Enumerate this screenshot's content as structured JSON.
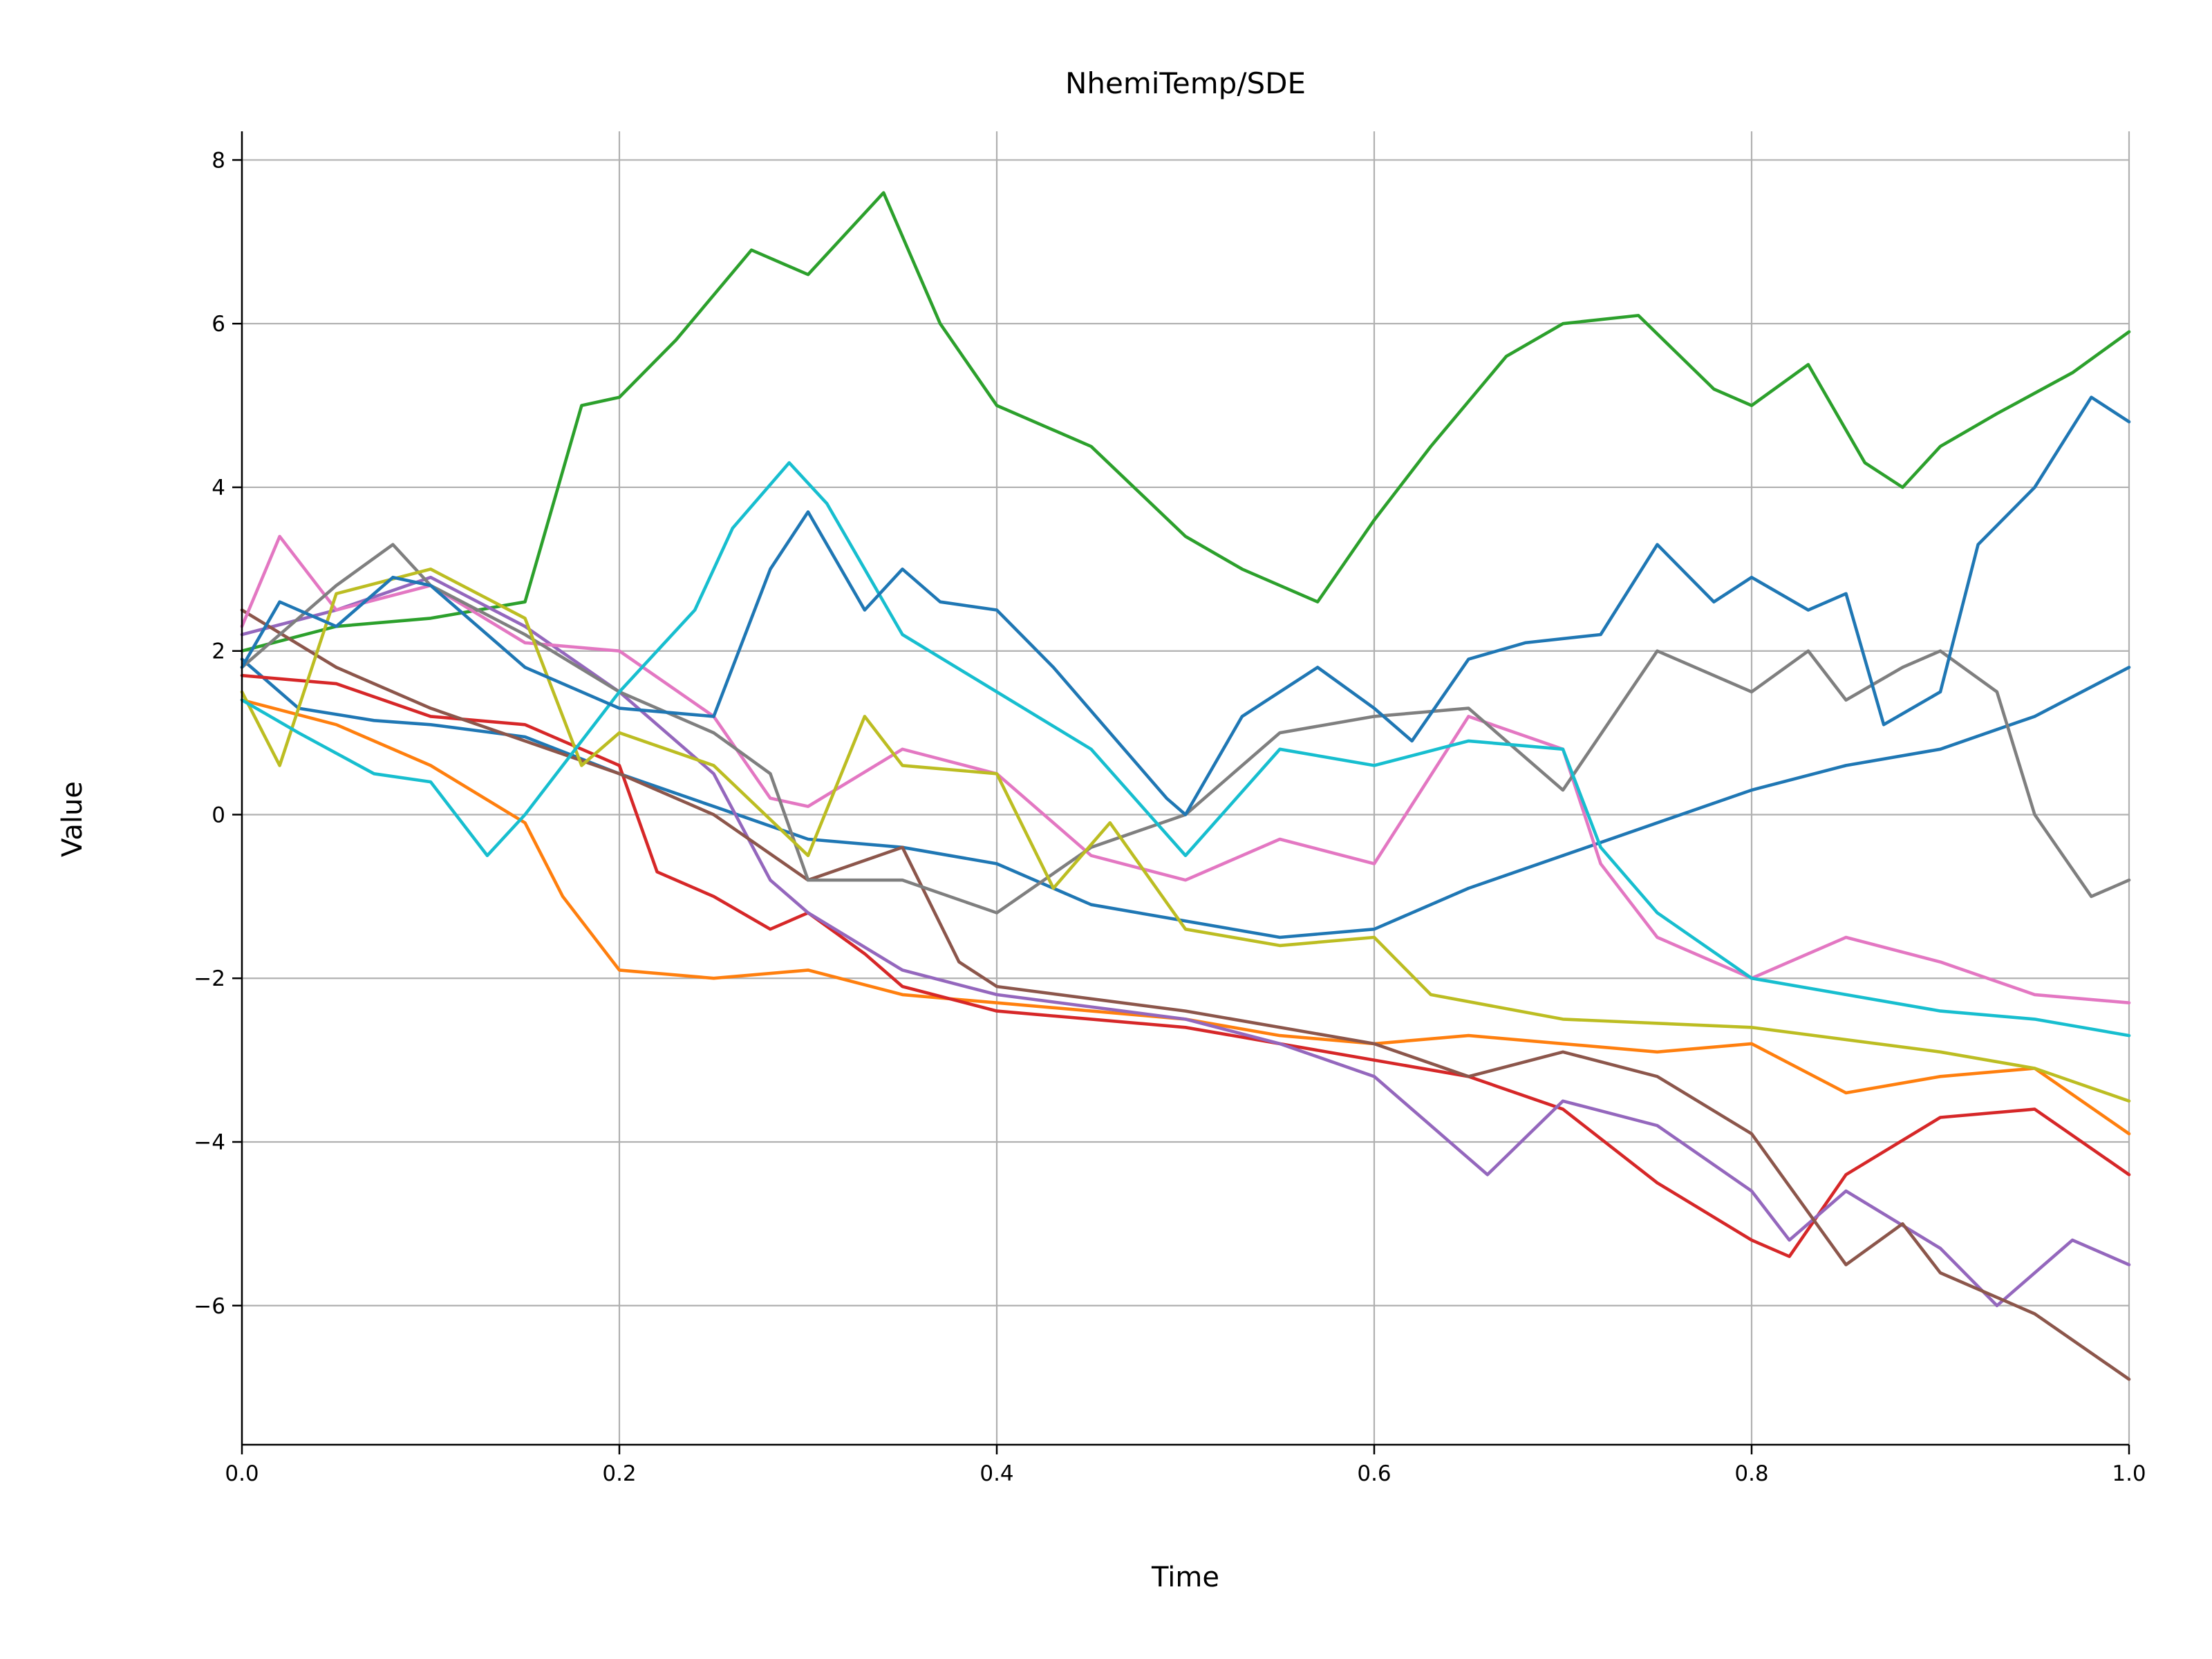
{
  "chart_data": {
    "type": "line",
    "title": "NhemiTemp/SDE",
    "xlabel": "Time",
    "ylabel": "Value",
    "xlim": [
      0.0,
      1.0
    ],
    "ylim": [
      -7.7,
      8.35
    ],
    "xticks": [
      0.0,
      0.2,
      0.4,
      0.6,
      0.8,
      1.0
    ],
    "xtick_labels": [
      "0.0",
      "0.2",
      "0.4",
      "0.6",
      "0.8",
      "1.0"
    ],
    "yticks": [
      -6,
      -4,
      -2,
      0,
      2,
      4,
      6,
      8
    ],
    "ytick_labels": [
      "−6",
      "−4",
      "−2",
      "0",
      "2",
      "4",
      "6",
      "8"
    ],
    "grid": true,
    "legend": "none",
    "series": [
      {
        "color": "#1f77b4",
        "x": [
          0.0,
          0.03,
          0.07,
          0.1,
          0.15,
          0.2,
          0.25,
          0.3,
          0.35,
          0.4,
          0.45,
          0.5,
          0.55,
          0.6,
          0.65,
          0.7,
          0.75,
          0.8,
          0.85,
          0.9,
          0.95,
          1.0
        ],
        "y": [
          1.9,
          1.3,
          1.15,
          1.1,
          0.95,
          0.5,
          0.1,
          -0.3,
          -0.4,
          -0.6,
          -1.1,
          -1.3,
          -1.5,
          -1.4,
          -0.9,
          -0.5,
          -0.1,
          0.3,
          0.6,
          0.8,
          1.2,
          1.8
        ]
      },
      {
        "color": "#ff7f0e",
        "x": [
          0.0,
          0.05,
          0.1,
          0.15,
          0.17,
          0.2,
          0.25,
          0.3,
          0.35,
          0.4,
          0.5,
          0.55,
          0.6,
          0.65,
          0.7,
          0.75,
          0.8,
          0.85,
          0.9,
          0.95,
          1.0
        ],
        "y": [
          1.4,
          1.1,
          0.6,
          -0.1,
          -1.0,
          -1.9,
          -2.0,
          -1.9,
          -2.2,
          -2.3,
          -2.5,
          -2.7,
          -2.8,
          -2.7,
          -2.8,
          -2.9,
          -2.8,
          -3.4,
          -3.2,
          -3.1,
          -3.9
        ]
      },
      {
        "color": "#2ca02c",
        "x": [
          0.0,
          0.05,
          0.1,
          0.15,
          0.18,
          0.2,
          0.23,
          0.27,
          0.3,
          0.34,
          0.37,
          0.4,
          0.45,
          0.5,
          0.53,
          0.57,
          0.6,
          0.63,
          0.67,
          0.7,
          0.74,
          0.78,
          0.8,
          0.83,
          0.86,
          0.88,
          0.9,
          0.93,
          0.97,
          1.0
        ],
        "y": [
          2.0,
          2.3,
          2.4,
          2.6,
          5.0,
          5.1,
          5.8,
          6.9,
          6.6,
          7.6,
          6.0,
          5.0,
          4.5,
          3.4,
          3.0,
          2.6,
          3.6,
          4.5,
          5.6,
          6.0,
          6.1,
          5.2,
          5.0,
          5.5,
          4.3,
          4.0,
          4.5,
          4.9,
          5.4,
          5.9
        ]
      },
      {
        "color": "#d62728",
        "x": [
          0.0,
          0.05,
          0.1,
          0.15,
          0.2,
          0.22,
          0.25,
          0.28,
          0.3,
          0.33,
          0.35,
          0.4,
          0.5,
          0.6,
          0.65,
          0.7,
          0.75,
          0.8,
          0.82,
          0.85,
          0.9,
          0.95,
          1.0
        ],
        "y": [
          1.7,
          1.6,
          1.2,
          1.1,
          0.6,
          -0.7,
          -1.0,
          -1.4,
          -1.2,
          -1.7,
          -2.1,
          -2.4,
          -2.6,
          -3.0,
          -3.2,
          -3.6,
          -4.5,
          -5.2,
          -5.4,
          -4.4,
          -3.7,
          -3.6,
          -4.4
        ]
      },
      {
        "color": "#9467bd",
        "x": [
          0.0,
          0.05,
          0.1,
          0.15,
          0.2,
          0.25,
          0.28,
          0.3,
          0.35,
          0.4,
          0.5,
          0.55,
          0.6,
          0.63,
          0.66,
          0.7,
          0.75,
          0.8,
          0.82,
          0.85,
          0.9,
          0.93,
          0.97,
          1.0
        ],
        "y": [
          2.2,
          2.5,
          2.9,
          2.3,
          1.5,
          0.5,
          -0.8,
          -1.2,
          -1.9,
          -2.2,
          -2.5,
          -2.8,
          -3.2,
          -3.8,
          -4.4,
          -3.5,
          -3.8,
          -4.6,
          -5.2,
          -4.6,
          -5.3,
          -6.0,
          -5.2,
          -5.5
        ]
      },
      {
        "color": "#8c564b",
        "x": [
          0.0,
          0.05,
          0.1,
          0.15,
          0.2,
          0.25,
          0.3,
          0.35,
          0.38,
          0.4,
          0.5,
          0.6,
          0.65,
          0.7,
          0.75,
          0.8,
          0.85,
          0.88,
          0.9,
          0.95,
          1.0
        ],
        "y": [
          2.5,
          1.8,
          1.3,
          0.9,
          0.5,
          0.0,
          -0.8,
          -0.4,
          -1.8,
          -2.1,
          -2.4,
          -2.8,
          -3.2,
          -2.9,
          -3.2,
          -3.9,
          -5.5,
          -5.0,
          -5.6,
          -6.1,
          -6.9
        ]
      },
      {
        "color": "#e377c2",
        "x": [
          0.0,
          0.02,
          0.05,
          0.1,
          0.15,
          0.2,
          0.25,
          0.28,
          0.3,
          0.35,
          0.4,
          0.45,
          0.5,
          0.55,
          0.6,
          0.65,
          0.7,
          0.72,
          0.75,
          0.8,
          0.85,
          0.9,
          0.95,
          1.0
        ],
        "y": [
          2.3,
          3.4,
          2.5,
          2.8,
          2.1,
          2.0,
          1.2,
          0.2,
          0.1,
          0.8,
          0.5,
          -0.5,
          -0.8,
          -0.3,
          -0.6,
          1.2,
          0.8,
          -0.6,
          -1.5,
          -2.0,
          -1.5,
          -1.8,
          -2.2,
          -2.3
        ]
      },
      {
        "color": "#7f7f7f",
        "x": [
          0.0,
          0.05,
          0.08,
          0.1,
          0.15,
          0.2,
          0.25,
          0.28,
          0.3,
          0.35,
          0.4,
          0.45,
          0.5,
          0.55,
          0.6,
          0.65,
          0.7,
          0.75,
          0.8,
          0.83,
          0.85,
          0.88,
          0.9,
          0.93,
          0.95,
          0.98,
          1.0
        ],
        "y": [
          1.8,
          2.8,
          3.3,
          2.8,
          2.2,
          1.5,
          1.0,
          0.5,
          -0.8,
          -0.8,
          -1.2,
          -0.4,
          0.0,
          1.0,
          1.2,
          1.3,
          0.3,
          2.0,
          1.5,
          2.0,
          1.4,
          1.8,
          2.0,
          1.5,
          0.0,
          -1.0,
          -0.8
        ]
      },
      {
        "color": "#bcbd22",
        "x": [
          0.0,
          0.02,
          0.05,
          0.1,
          0.15,
          0.18,
          0.2,
          0.25,
          0.3,
          0.33,
          0.35,
          0.4,
          0.43,
          0.46,
          0.5,
          0.55,
          0.6,
          0.63,
          0.7,
          0.8,
          0.9,
          0.95,
          1.0
        ],
        "y": [
          1.5,
          0.6,
          2.7,
          3.0,
          2.4,
          0.6,
          1.0,
          0.6,
          -0.5,
          1.2,
          0.6,
          0.5,
          -0.9,
          -0.1,
          -1.4,
          -1.6,
          -1.5,
          -2.2,
          -2.5,
          -2.6,
          -2.9,
          -3.1,
          -3.5
        ]
      },
      {
        "color": "#17becf",
        "x": [
          0.0,
          0.03,
          0.07,
          0.1,
          0.13,
          0.15,
          0.2,
          0.24,
          0.26,
          0.29,
          0.31,
          0.35,
          0.4,
          0.45,
          0.5,
          0.55,
          0.6,
          0.65,
          0.7,
          0.72,
          0.75,
          0.8,
          0.85,
          0.9,
          0.95,
          1.0
        ],
        "y": [
          1.4,
          1.0,
          0.5,
          0.4,
          -0.5,
          0.0,
          1.5,
          2.5,
          3.5,
          4.3,
          3.8,
          2.2,
          1.5,
          0.8,
          -0.5,
          0.8,
          0.6,
          0.9,
          0.8,
          -0.4,
          -1.2,
          -2.0,
          -2.2,
          -2.4,
          -2.5,
          -2.7
        ]
      },
      {
        "color": "#1f77b4",
        "x": [
          0.0,
          0.02,
          0.05,
          0.08,
          0.1,
          0.13,
          0.15,
          0.2,
          0.25,
          0.28,
          0.3,
          0.33,
          0.35,
          0.37,
          0.4,
          0.43,
          0.46,
          0.49,
          0.5,
          0.53,
          0.57,
          0.6,
          0.62,
          0.65,
          0.68,
          0.72,
          0.75,
          0.78,
          0.8,
          0.83,
          0.85,
          0.87,
          0.9,
          0.92,
          0.95,
          0.98,
          1.0
        ],
        "y": [
          1.8,
          2.6,
          2.3,
          2.9,
          2.8,
          2.2,
          1.8,
          1.3,
          1.2,
          3.0,
          3.7,
          2.5,
          3.0,
          2.6,
          2.5,
          1.8,
          1.0,
          0.2,
          0.0,
          1.2,
          1.8,
          1.3,
          0.9,
          1.9,
          2.1,
          2.2,
          3.3,
          2.6,
          2.9,
          2.5,
          2.7,
          1.1,
          1.5,
          3.3,
          4.0,
          5.1,
          4.8
        ]
      }
    ]
  }
}
